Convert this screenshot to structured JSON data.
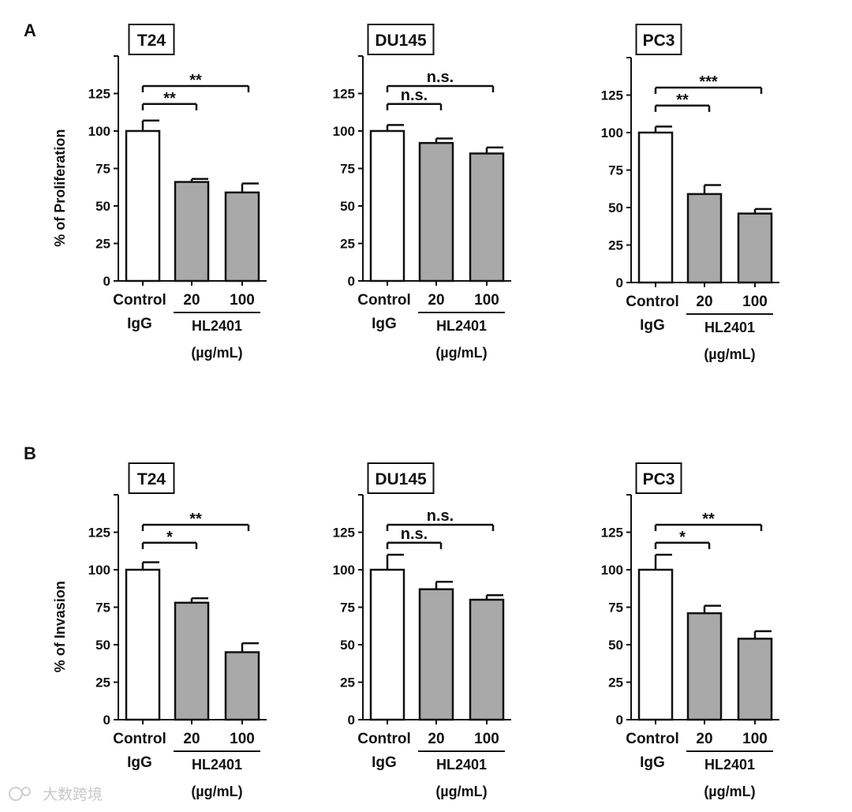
{
  "panel_labels": [
    "A",
    "B"
  ],
  "watermark": "大数跨境",
  "chart_data": [
    {
      "type": "bar",
      "panel": "A",
      "title": "T24",
      "ylabel": "% of Proliferation",
      "ylim": [
        0,
        150
      ],
      "yticks": [
        0,
        25,
        50,
        75,
        100,
        125
      ],
      "categories": [
        "Control",
        "20",
        "100"
      ],
      "category_sublabels": [
        "IgG",
        "",
        ""
      ],
      "group_label": "HL2401",
      "group_unit": "(µg/mL)",
      "values": [
        100,
        66,
        59
      ],
      "errors": [
        7,
        2,
        6
      ],
      "fill": [
        "#ffffff",
        "#a9a9a9",
        "#a9a9a9"
      ],
      "comparisons": [
        {
          "from": "Control",
          "to": "20",
          "label": "**"
        },
        {
          "from": "Control",
          "to": "100",
          "label": "**"
        }
      ]
    },
    {
      "type": "bar",
      "panel": "A",
      "title": "DU145",
      "ylabel": "",
      "ylim": [
        0,
        150
      ],
      "yticks": [
        0,
        25,
        50,
        75,
        100,
        125
      ],
      "categories": [
        "Control",
        "20",
        "100"
      ],
      "category_sublabels": [
        "IgG",
        "",
        ""
      ],
      "group_label": "HL2401",
      "group_unit": "(µg/mL)",
      "values": [
        100,
        92,
        85
      ],
      "errors": [
        4,
        3,
        4
      ],
      "fill": [
        "#ffffff",
        "#a9a9a9",
        "#a9a9a9"
      ],
      "comparisons": [
        {
          "from": "Control",
          "to": "20",
          "label": "n.s."
        },
        {
          "from": "Control",
          "to": "100",
          "label": "n.s."
        }
      ]
    },
    {
      "type": "bar",
      "panel": "A",
      "title": "PC3",
      "ylabel": "",
      "ylim": [
        0,
        150
      ],
      "yticks": [
        0,
        25,
        50,
        75,
        100,
        125
      ],
      "categories": [
        "Control",
        "20",
        "100"
      ],
      "category_sublabels": [
        "IgG",
        "",
        ""
      ],
      "group_label": "HL2401",
      "group_unit": "(µg/mL)",
      "values": [
        100,
        59,
        46
      ],
      "errors": [
        4,
        6,
        3
      ],
      "fill": [
        "#ffffff",
        "#a9a9a9",
        "#a9a9a9"
      ],
      "comparisons": [
        {
          "from": "Control",
          "to": "20",
          "label": "**"
        },
        {
          "from": "Control",
          "to": "100",
          "label": "***"
        }
      ]
    },
    {
      "type": "bar",
      "panel": "B",
      "title": "T24",
      "ylabel": "% of Invasion",
      "ylim": [
        0,
        150
      ],
      "yticks": [
        0,
        25,
        50,
        75,
        100,
        125
      ],
      "categories": [
        "Control",
        "20",
        "100"
      ],
      "category_sublabels": [
        "IgG",
        "",
        ""
      ],
      "group_label": "HL2401",
      "group_unit": "(µg/mL)",
      "values": [
        100,
        78,
        45
      ],
      "errors": [
        5,
        3,
        6
      ],
      "fill": [
        "#ffffff",
        "#a9a9a9",
        "#a9a9a9"
      ],
      "comparisons": [
        {
          "from": "Control",
          "to": "20",
          "label": "*"
        },
        {
          "from": "Control",
          "to": "100",
          "label": "**"
        }
      ]
    },
    {
      "type": "bar",
      "panel": "B",
      "title": "DU145",
      "ylabel": "",
      "ylim": [
        0,
        150
      ],
      "yticks": [
        0,
        25,
        50,
        75,
        100,
        125
      ],
      "categories": [
        "Control",
        "20",
        "100"
      ],
      "category_sublabels": [
        "IgG",
        "",
        ""
      ],
      "group_label": "HL2401",
      "group_unit": "(µg/mL)",
      "values": [
        100,
        87,
        80
      ],
      "errors": [
        10,
        5,
        3
      ],
      "fill": [
        "#ffffff",
        "#a9a9a9",
        "#a9a9a9"
      ],
      "comparisons": [
        {
          "from": "Control",
          "to": "20",
          "label": "n.s."
        },
        {
          "from": "Control",
          "to": "100",
          "label": "n.s."
        }
      ]
    },
    {
      "type": "bar",
      "panel": "B",
      "title": "PC3",
      "ylabel": "",
      "ylim": [
        0,
        150
      ],
      "yticks": [
        0,
        25,
        50,
        75,
        100,
        125
      ],
      "categories": [
        "Control",
        "20",
        "100"
      ],
      "category_sublabels": [
        "IgG",
        "",
        ""
      ],
      "group_label": "HL2401",
      "group_unit": "(µg/mL)",
      "values": [
        100,
        71,
        54
      ],
      "errors": [
        10,
        5,
        5
      ],
      "fill": [
        "#ffffff",
        "#a9a9a9",
        "#a9a9a9"
      ],
      "comparisons": [
        {
          "from": "Control",
          "to": "20",
          "label": "*"
        },
        {
          "from": "Control",
          "to": "100",
          "label": "**"
        }
      ]
    }
  ]
}
